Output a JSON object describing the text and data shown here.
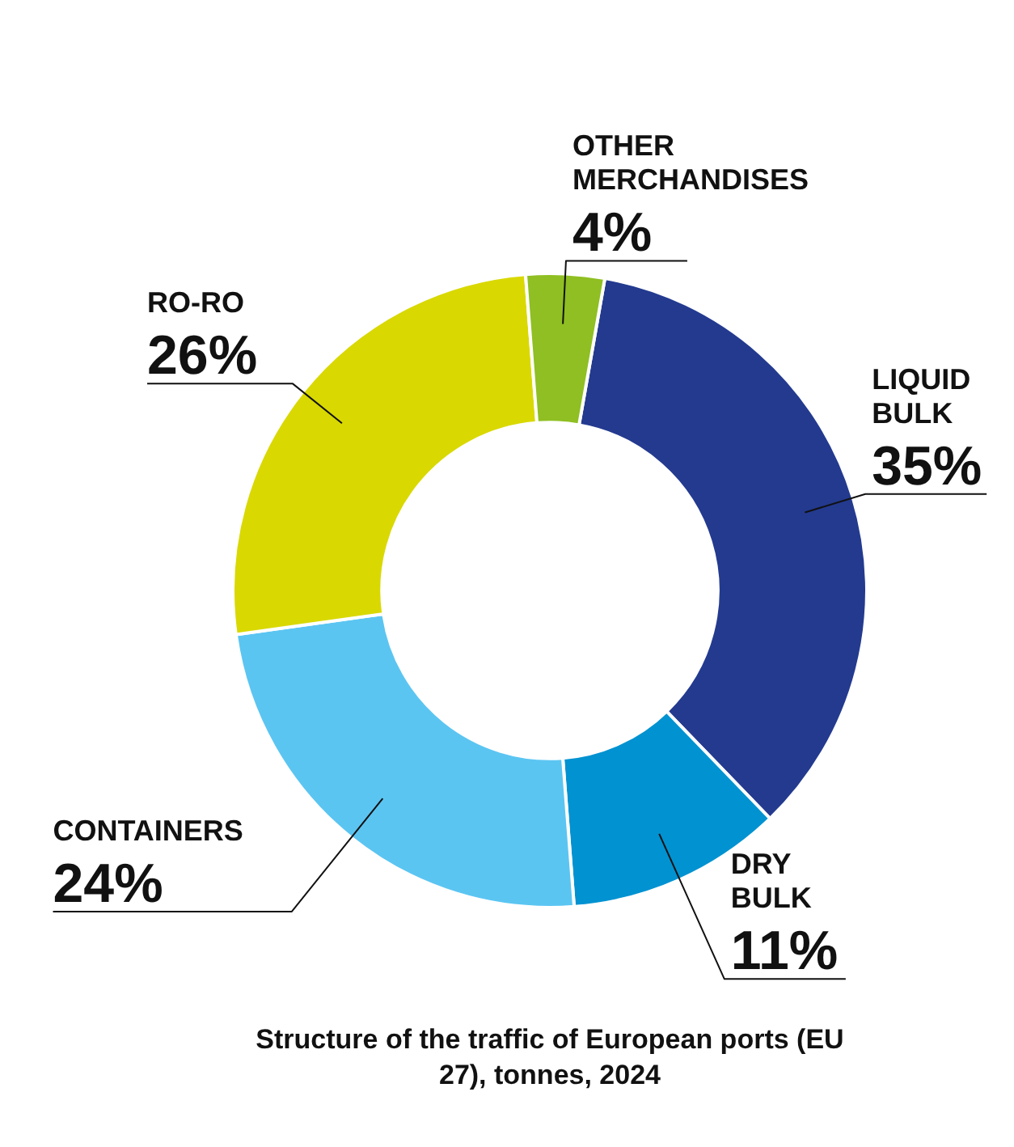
{
  "chart_data": {
    "type": "donut",
    "title": "Structure of the traffic of European ports (EU 27), tonnes, 2024",
    "categories": [
      "LIQUID BULK",
      "DRY BULK",
      "CONTAINERS",
      "RO-RO",
      "OTHER MERCHANDISES"
    ],
    "values": [
      35,
      11,
      24,
      26,
      4
    ],
    "value_labels": [
      "35%",
      "11%",
      "24%",
      "26%",
      "4%"
    ],
    "colors": [
      "#233a8f",
      "#0192d1",
      "#5bc5f2",
      "#d9d800",
      "#8fbf22"
    ],
    "legend": false
  }
}
